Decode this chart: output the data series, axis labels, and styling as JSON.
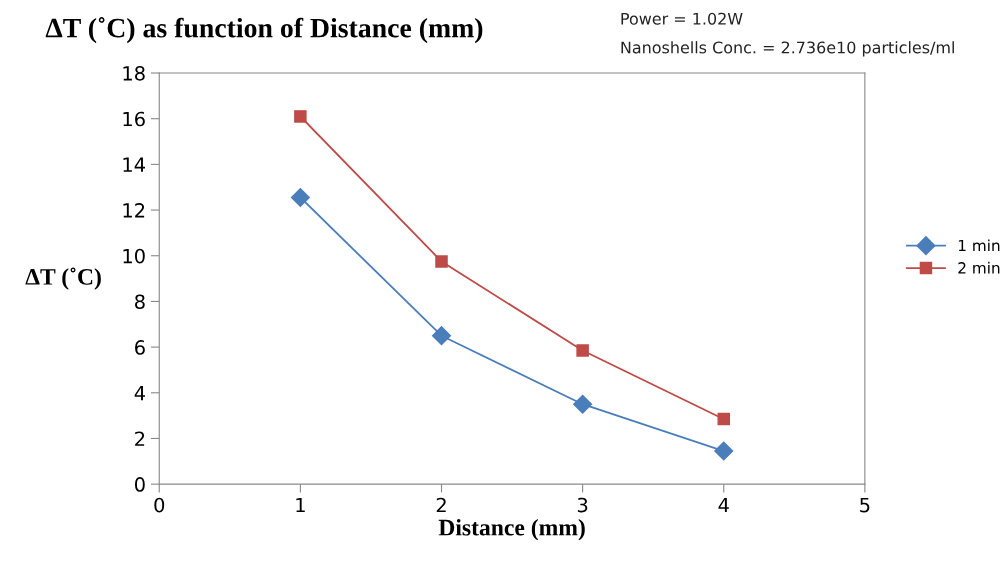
{
  "chart_data": {
    "type": "line",
    "title": "ΔT (˚C) as function of Distance (mm)",
    "xlabel": "Distance (mm)",
    "ylabel": "ΔT (˚C)",
    "annotations": [
      "Power = 1.02W",
      "Nanoshells Conc. = 2.736e10 particles/ml"
    ],
    "x": [
      1,
      2,
      3,
      4
    ],
    "series": [
      {
        "name": "1 min",
        "color": "#4a7ebb",
        "marker": "diamond",
        "values": [
          12.55,
          6.5,
          3.5,
          1.45
        ]
      },
      {
        "name": "2 min",
        "color": "#be4b48",
        "marker": "square",
        "values": [
          16.1,
          9.75,
          5.85,
          2.85
        ]
      }
    ],
    "xlim": [
      0,
      5
    ],
    "xticks": [
      0,
      1,
      2,
      3,
      4,
      5
    ],
    "ylim": [
      0,
      18
    ],
    "yticks": [
      0,
      2,
      4,
      6,
      8,
      10,
      12,
      14,
      16,
      18
    ],
    "grid": false,
    "legend": "right"
  }
}
